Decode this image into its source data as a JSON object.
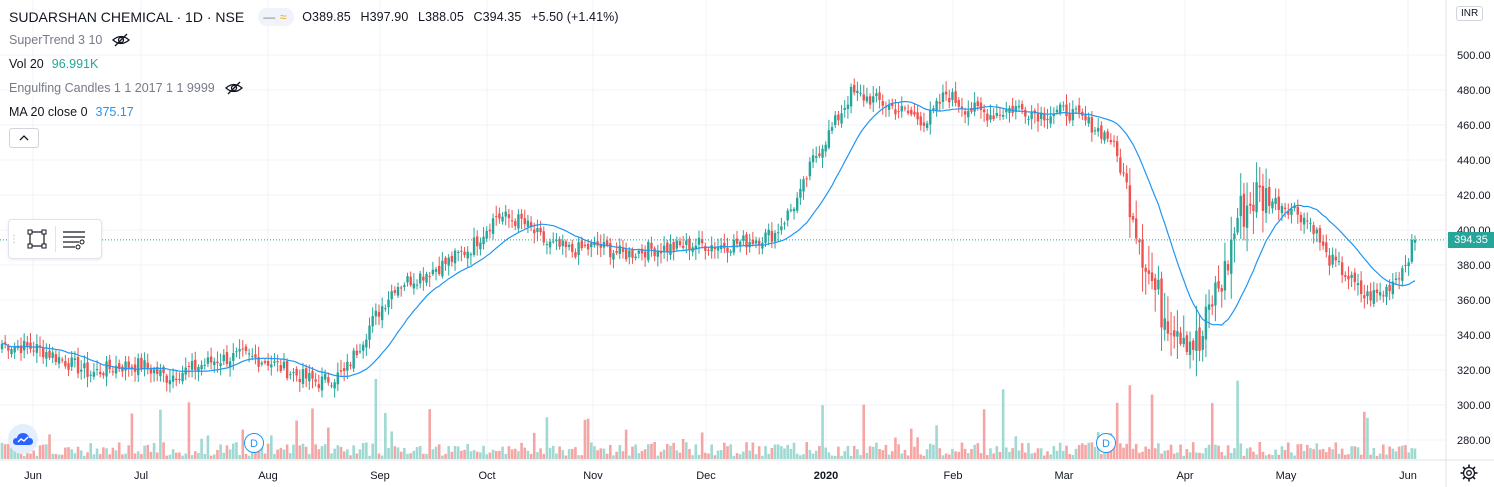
{
  "header": {
    "symbol_title": "SUDARSHAN CHEMICAL · 1D · NSE",
    "ohlc": {
      "open_label": "O",
      "open": "389.85",
      "high_label": "H",
      "high": "397.90",
      "low_label": "L",
      "low": "388.05",
      "close_label": "C",
      "close": "394.35",
      "change": "+5.50 (+1.41%)"
    }
  },
  "indicators": {
    "supertrend": {
      "name": "SuperTrend 3 10"
    },
    "volume": {
      "name": "Vol 20",
      "value": "96.991K"
    },
    "engulfing": {
      "name": "Engulfing Candles 1 1 2017 1 1 9999"
    },
    "ma": {
      "name": "MA 20 close 0",
      "value": "375.17"
    }
  },
  "price_axis": {
    "currency": "INR",
    "last_price_label": "394.35"
  },
  "events": [
    {
      "label": "D"
    },
    {
      "label": "D"
    }
  ],
  "colors": {
    "up": "#26a69a",
    "down": "#ef5350",
    "ma": "#2196f3",
    "vol_up": "#9fd9d2",
    "vol_down": "#f5a5a4",
    "grid": "#f0f3fa"
  },
  "chart_data": {
    "type": "candlestick",
    "title": "SUDARSHAN CHEMICAL · 1D · NSE",
    "ylim": [
      268,
      512
    ],
    "y_ticks": [
      280,
      300,
      320,
      340,
      360,
      380,
      400,
      420,
      440,
      460,
      480,
      500
    ],
    "x_ticks": [
      "Jun",
      "Jul",
      "Aug",
      "Sep",
      "Oct",
      "Nov",
      "Dec",
      "2020",
      "Feb",
      "Mar",
      "Apr",
      "May",
      "Jun"
    ],
    "last_price": 394.35,
    "grid": true,
    "legend": "top-left",
    "anchors": [
      [
        0,
        335
      ],
      [
        12,
        332
      ],
      [
        20,
        325
      ],
      [
        28,
        318
      ],
      [
        36,
        322
      ],
      [
        44,
        323
      ],
      [
        52,
        316
      ],
      [
        60,
        321
      ],
      [
        68,
        326
      ],
      [
        76,
        328
      ],
      [
        84,
        325
      ],
      [
        92,
        318
      ],
      [
        100,
        313
      ],
      [
        108,
        318
      ],
      [
        116,
        345
      ],
      [
        124,
        368
      ],
      [
        132,
        374
      ],
      [
        140,
        381
      ],
      [
        148,
        390
      ],
      [
        156,
        408
      ],
      [
        164,
        405
      ],
      [
        172,
        392
      ],
      [
        180,
        388
      ],
      [
        188,
        391
      ],
      [
        196,
        386
      ],
      [
        204,
        389
      ],
      [
        212,
        390
      ],
      [
        220,
        392
      ],
      [
        228,
        391
      ],
      [
        236,
        394
      ],
      [
        244,
        398
      ],
      [
        252,
        420
      ],
      [
        256,
        440
      ],
      [
        262,
        458
      ],
      [
        268,
        478
      ],
      [
        276,
        474
      ],
      [
        284,
        468
      ],
      [
        292,
        462
      ],
      [
        298,
        478
      ],
      [
        304,
        470
      ],
      [
        312,
        466
      ],
      [
        320,
        470
      ],
      [
        328,
        466
      ],
      [
        336,
        468
      ],
      [
        344,
        460
      ],
      [
        350,
        452
      ],
      [
        356,
        420
      ],
      [
        362,
        375
      ],
      [
        366,
        355
      ],
      [
        372,
        345
      ],
      [
        378,
        332
      ],
      [
        382,
        360
      ],
      [
        386,
        375
      ],
      [
        390,
        408
      ],
      [
        396,
        420
      ],
      [
        402,
        416
      ],
      [
        408,
        412
      ],
      [
        414,
        402
      ],
      [
        418,
        385
      ],
      [
        424,
        375
      ],
      [
        430,
        362
      ],
      [
        436,
        364
      ],
      [
        442,
        378
      ],
      [
        446,
        394
      ]
    ]
  }
}
